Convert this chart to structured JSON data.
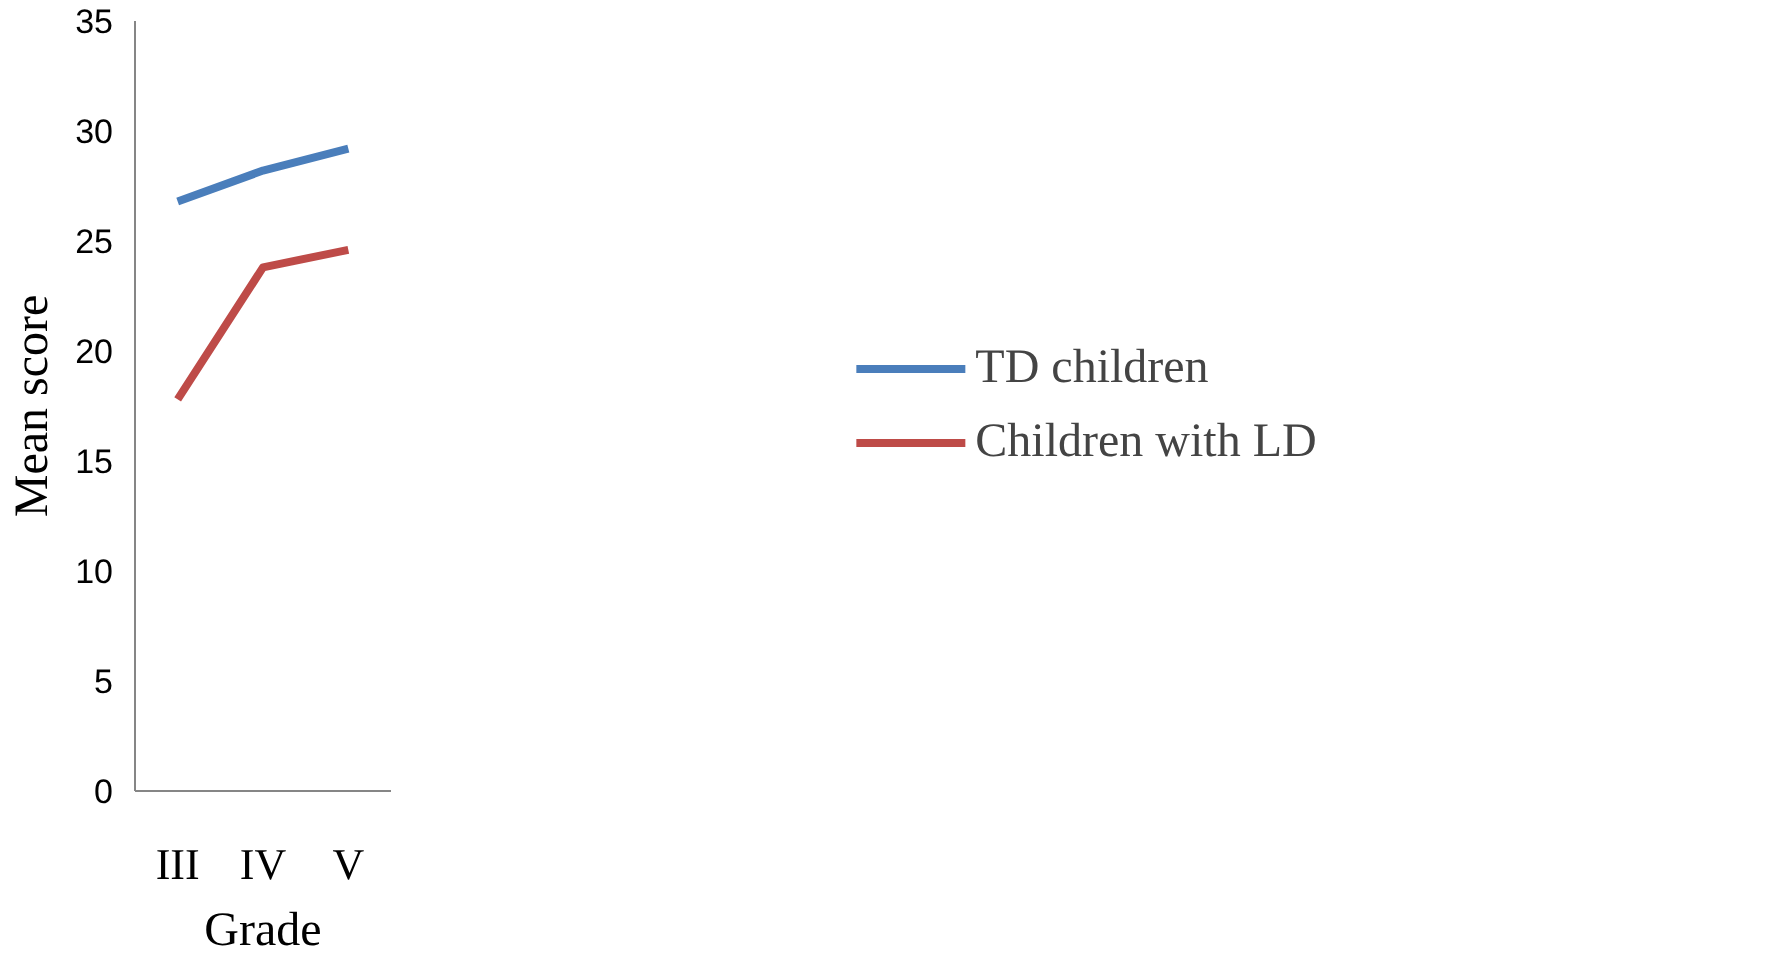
{
  "chart_data": {
    "type": "line",
    "xlabel": "Grade",
    "ylabel": "Mean score",
    "categories": [
      "III",
      "IV",
      "V"
    ],
    "series": [
      {
        "name": "TD children",
        "color": "#4a7ebb",
        "values": [
          26.8,
          28.2,
          29.2
        ]
      },
      {
        "name": "Children with LD",
        "color": "#be4b48",
        "values": [
          17.8,
          23.8,
          24.6
        ]
      }
    ],
    "ylim": [
      0,
      35
    ],
    "yticks": [
      0,
      5,
      10,
      15,
      20,
      25,
      30,
      35
    ],
    "grid": false,
    "legend": "right",
    "marker": "none",
    "line_style": "solid"
  }
}
